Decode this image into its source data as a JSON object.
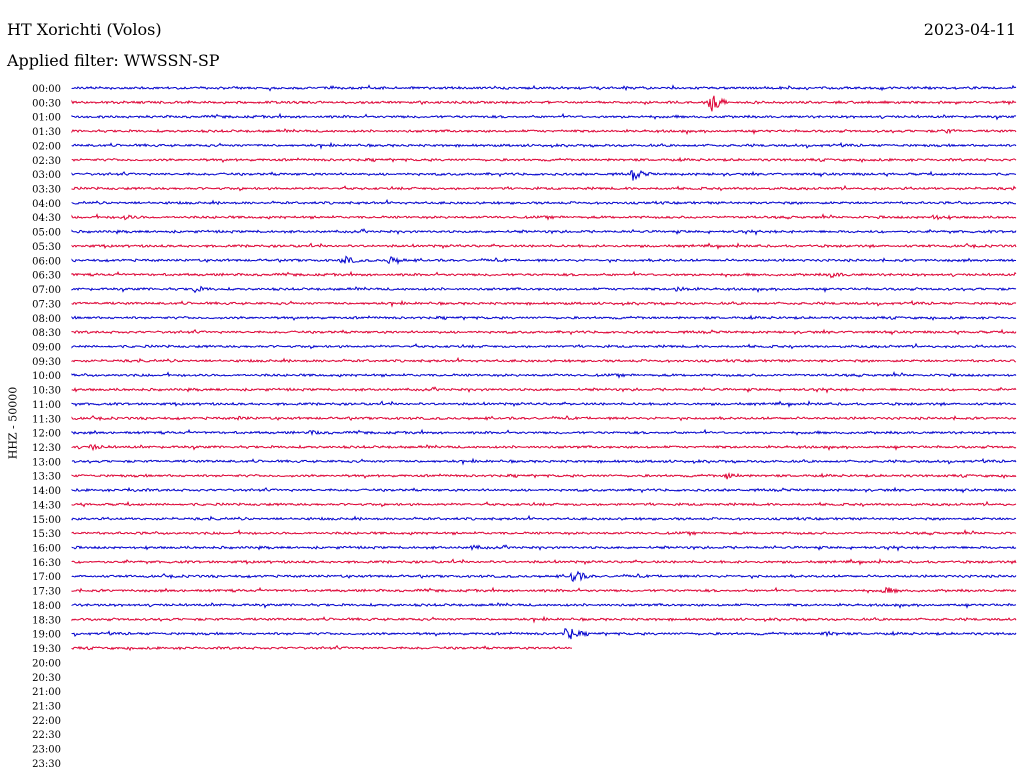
{
  "header": {
    "station": "HT Xorichti (Volos)",
    "date": "2023-04-11",
    "filter": "Applied filter: WWSSN-SP",
    "channel": "HHZ - 50000"
  },
  "chart_data": {
    "type": "line",
    "title": "HT Xorichti (Volos)",
    "ylabel": "HHZ - 50000",
    "line_labels": [
      "00:00",
      "00:30",
      "01:00",
      "01:30",
      "02:00",
      "02:30",
      "03:00",
      "03:30",
      "04:00",
      "04:30",
      "05:00",
      "05:30",
      "06:00",
      "06:30",
      "07:00",
      "07:30",
      "08:00",
      "08:30",
      "09:00",
      "09:30",
      "10:00",
      "10:30",
      "11:00",
      "11:30",
      "12:00",
      "12:30",
      "13:00",
      "13:30",
      "14:00",
      "14:30",
      "15:00",
      "15:30",
      "16:00",
      "16:30",
      "17:00",
      "17:30",
      "18:00",
      "18:30",
      "19:00",
      "19:30",
      "20:00",
      "20:30",
      "21:00",
      "21:30",
      "22:00",
      "22:30",
      "23:00",
      "23:30"
    ],
    "line_minutes": 30,
    "colors": [
      "#0000cc",
      "#dd0033"
    ],
    "last_trace_fraction": 0.53,
    "events": [
      {
        "line": "00:30",
        "minute": 20.3,
        "amplitude": 12
      },
      {
        "line": "01:30",
        "minute": 27.7,
        "amplitude": 2
      },
      {
        "line": "03:00",
        "minute": 17.8,
        "amplitude": 6
      },
      {
        "line": "04:30",
        "minute": 1.6,
        "amplitude": 3
      },
      {
        "line": "04:30",
        "minute": 27.3,
        "amplitude": 3
      },
      {
        "line": "06:00",
        "minute": 8.6,
        "amplitude": 6
      },
      {
        "line": "06:00",
        "minute": 10.1,
        "amplitude": 5
      },
      {
        "line": "06:30",
        "minute": 24.1,
        "amplitude": 3
      },
      {
        "line": "07:00",
        "minute": 3.9,
        "amplitude": 3
      },
      {
        "line": "07:00",
        "minute": 19.2,
        "amplitude": 3
      },
      {
        "line": "11:30",
        "minute": 5.2,
        "amplitude": 2
      },
      {
        "line": "12:00",
        "minute": 7.6,
        "amplitude": 2
      },
      {
        "line": "12:30",
        "minute": 0.6,
        "amplitude": 3
      },
      {
        "line": "13:30",
        "minute": 20.8,
        "amplitude": 3
      },
      {
        "line": "14:00",
        "minute": 1.8,
        "amplitude": 2
      },
      {
        "line": "16:00",
        "minute": 12.7,
        "amplitude": 2
      },
      {
        "line": "17:00",
        "minute": 15.9,
        "amplitude": 9
      },
      {
        "line": "17:30",
        "minute": 25.8,
        "amplitude": 4
      },
      {
        "line": "19:00",
        "minute": 15.7,
        "amplitude": 9
      },
      {
        "line": "19:00",
        "minute": 23.9,
        "amplitude": 3
      }
    ]
  }
}
